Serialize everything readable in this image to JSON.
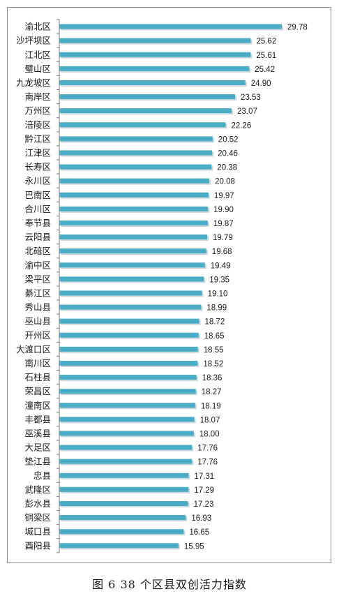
{
  "caption": "图 6 38 个区县双创活力指数",
  "colors": {
    "bar": "#4bacc6",
    "bar_shadow": "#9fb5bd",
    "axis": "#7f7f7f",
    "text": "#1a1a1a"
  },
  "chart_data": {
    "type": "bar",
    "orientation": "horizontal",
    "categories": [
      "渝北区",
      "沙坪坝区",
      "江北区",
      "璧山区",
      "九龙坡区",
      "南岸区",
      "万州区",
      "涪陵区",
      "黔江区",
      "江津区",
      "长寿区",
      "永川区",
      "巴南区",
      "合川区",
      "奉节县",
      "云阳县",
      "北碚区",
      "渝中区",
      "梁平区",
      "綦江区",
      "秀山县",
      "巫山县",
      "开州区",
      "大渡口区",
      "南川区",
      "石柱县",
      "荣昌区",
      "潼南区",
      "丰都县",
      "巫溪县",
      "大足区",
      "垫江县",
      "忠县",
      "武隆区",
      "彭水县",
      "铜梁区",
      "城口县",
      "酉阳县"
    ],
    "values": [
      29.78,
      25.62,
      25.61,
      25.42,
      24.9,
      23.53,
      23.07,
      22.26,
      20.52,
      20.46,
      20.38,
      20.08,
      19.97,
      19.9,
      19.87,
      19.79,
      19.68,
      19.49,
      19.35,
      19.1,
      18.99,
      18.72,
      18.65,
      18.55,
      18.52,
      18.36,
      18.27,
      18.19,
      18.07,
      18.0,
      17.76,
      17.76,
      17.31,
      17.29,
      17.23,
      16.93,
      16.65,
      15.95
    ],
    "value_labels": [
      "29.78",
      "25.62",
      "25.61",
      "25.42",
      "24.90",
      "23.53",
      "23.07",
      "22.26",
      "20.52",
      "20.46",
      "20.38",
      "20.08",
      "19.97",
      "19.90",
      "19.87",
      "19.79",
      "19.68",
      "19.49",
      "19.35",
      "19.10",
      "18.99",
      "18.72",
      "18.65",
      "18.55",
      "18.52",
      "18.36",
      "18.27",
      "18.19",
      "18.07",
      "18.00",
      "17.76",
      "17.76",
      "17.31",
      "17.29",
      "17.23",
      "16.93",
      "16.65",
      "15.95"
    ],
    "xlim": [
      0,
      30
    ],
    "grid": false,
    "legend": "none",
    "data_labels": true
  }
}
